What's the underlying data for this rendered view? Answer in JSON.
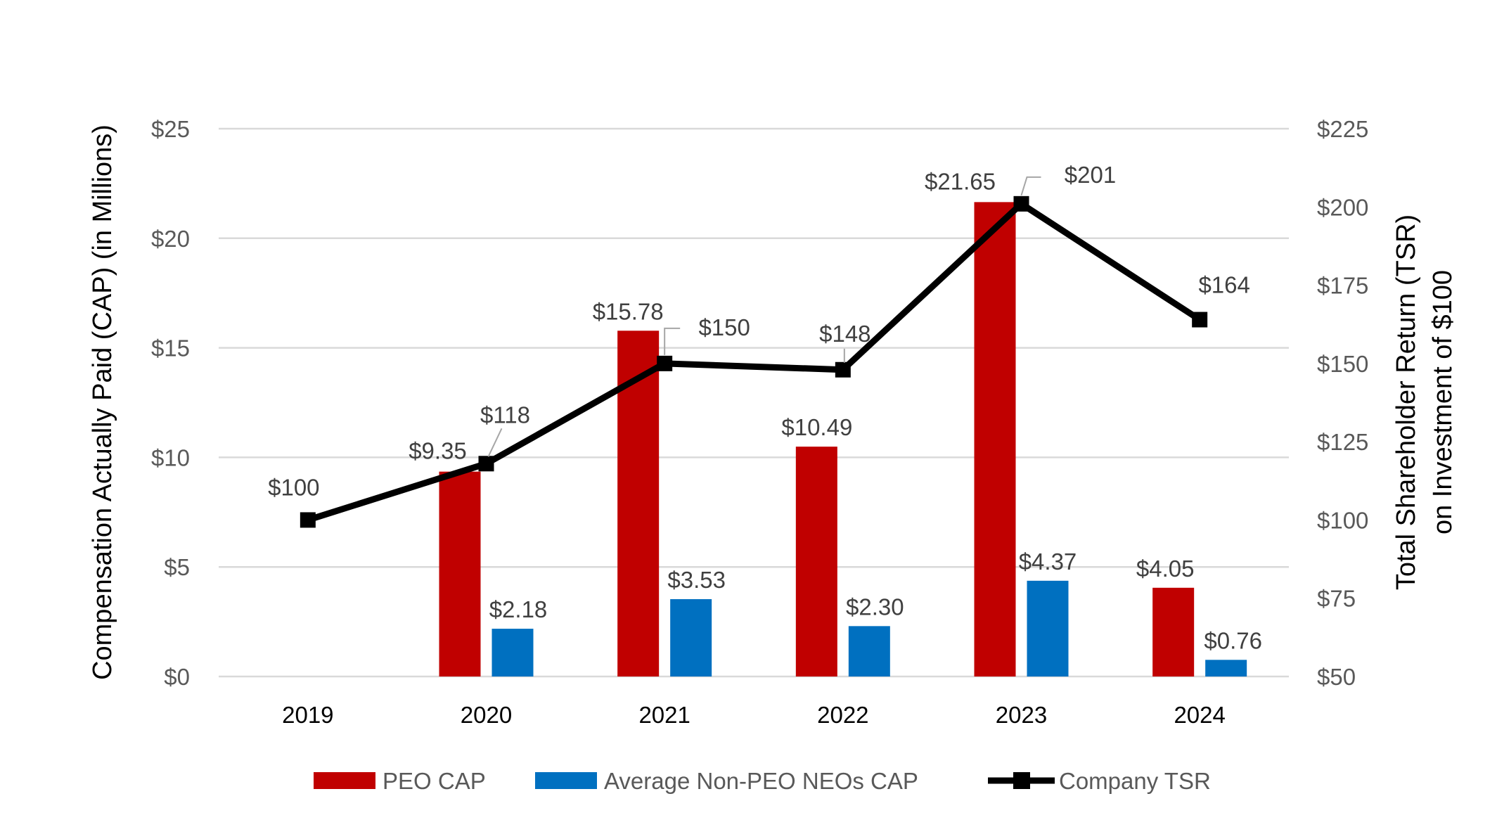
{
  "chart_data": {
    "type": "bar+line",
    "categories": [
      "2019",
      "2020",
      "2021",
      "2022",
      "2023",
      "2024"
    ],
    "series": [
      {
        "name": "PEO CAP",
        "type": "bar",
        "axis": "left",
        "color": "#C00000",
        "values": [
          null,
          9.35,
          15.78,
          10.49,
          21.65,
          4.05
        ],
        "labels": [
          "",
          "$9.35",
          "$15.78",
          "$10.49",
          "$21.65",
          "$4.05"
        ]
      },
      {
        "name": "Average Non-PEO NEOs CAP",
        "type": "bar",
        "axis": "left",
        "color": "#0070C0",
        "values": [
          null,
          2.18,
          3.53,
          2.3,
          4.37,
          0.76
        ],
        "labels": [
          "",
          "$2.18",
          "$3.53",
          "$2.30",
          "$4.37",
          "$0.76"
        ]
      },
      {
        "name": "Company TSR",
        "type": "line",
        "axis": "right",
        "color": "#000000",
        "marker": "square",
        "values": [
          100,
          118,
          150,
          148,
          201,
          164
        ],
        "labels": [
          "$100",
          "$118",
          "$150",
          "$148",
          "$201",
          "$164"
        ]
      }
    ],
    "ylabel": "Compensation Actually Paid (CAP) (in Millions)",
    "ylabel_right": [
      "Total Shareholder Return (TSR)",
      "on Investment of $100"
    ],
    "ylim": [
      0,
      25
    ],
    "ylim_right": [
      50,
      225
    ],
    "yticks": [
      "$0",
      "$5",
      "$10",
      "$15",
      "$20",
      "$25"
    ],
    "yticks_right": [
      "$50",
      "$75",
      "$100",
      "$125",
      "$150",
      "$175",
      "$200",
      "$225"
    ],
    "grid": true,
    "gridline_color": "#D9D9D9",
    "legend": "bottom"
  }
}
